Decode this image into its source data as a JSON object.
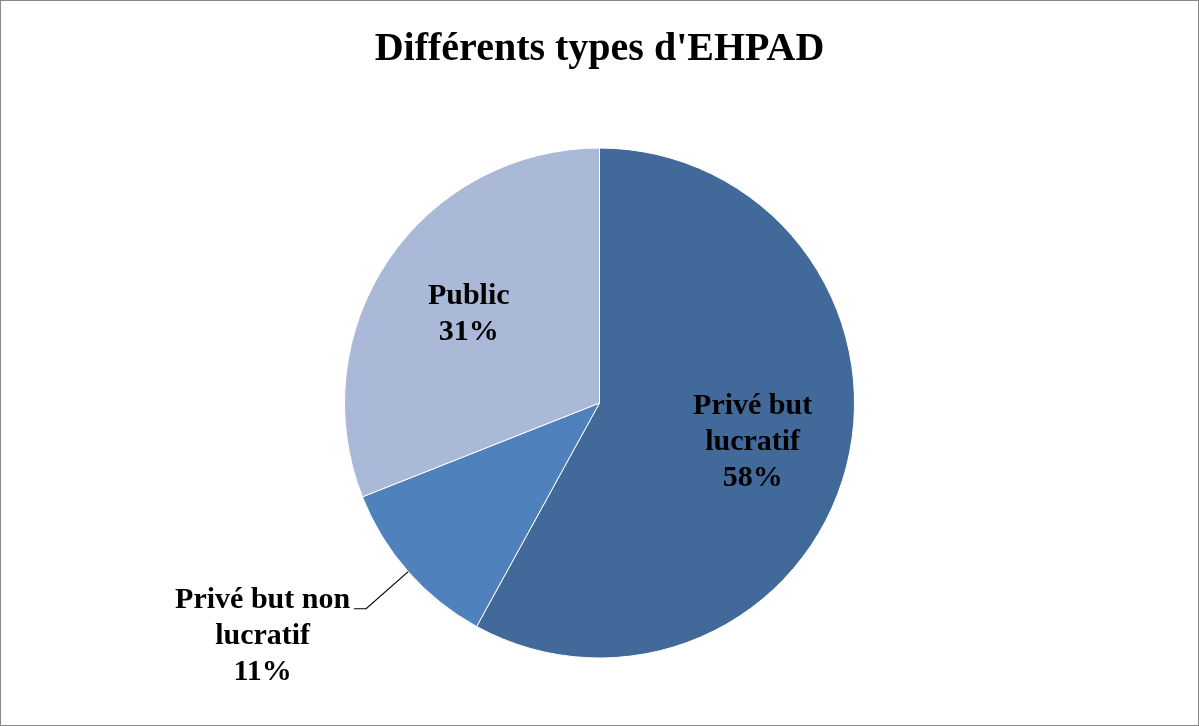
{
  "chart_data": {
    "type": "pie",
    "title": "Différents types d'EHPAD",
    "categories": [
      "Privé but lucratif",
      "Privé but non lucratif",
      "Public"
    ],
    "values": [
      58,
      11,
      31
    ],
    "colors": [
      "#416a9b",
      "#4f81bd",
      "#a9b9d7"
    ],
    "value_labels": [
      "58%",
      "11%",
      "31%"
    ],
    "legend": false
  }
}
